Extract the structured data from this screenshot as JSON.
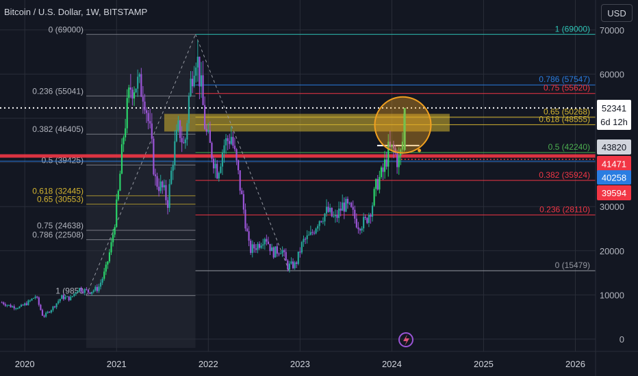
{
  "header": {
    "title": "Bitcoin / U.S. Dollar, 1W, BITSTAMP",
    "currency_button": "USD"
  },
  "colors": {
    "background": "#131722",
    "up": "#26a69a",
    "up_bright": "#2bd46a",
    "down": "#9c55d8",
    "grid": "#2a2e39",
    "axis_text": "#b2b5be",
    "text": "#d1d4dc",
    "fib_upper": "#2a7de1",
    "fib_red": "#f23645",
    "fib_yellow": "#d4b530",
    "fib_teal": "#2ec4b6",
    "fib_green": "#4caf50",
    "fib_gray": "#9598a1"
  },
  "chart_data": {
    "type": "candlestick",
    "symbol": "Bitcoin / U.S. Dollar",
    "interval": "1W",
    "exchange": "BITSTAMP",
    "x_ticks": [
      "2020",
      "2021",
      "2022",
      "2023",
      "2024",
      "2025",
      "2026"
    ],
    "x_range": [
      2019.73,
      2026.22
    ],
    "y_ticks": [
      0,
      10000,
      20000,
      30000,
      40000,
      50000,
      60000,
      70000
    ],
    "y_range": [
      -6500,
      77000
    ],
    "price_path": [
      [
        2019.75,
        8300
      ],
      [
        2019.85,
        7400
      ],
      [
        2019.95,
        7200
      ],
      [
        2020.05,
        8500
      ],
      [
        2020.12,
        9800
      ],
      [
        2020.2,
        5000
      ],
      [
        2020.3,
        7000
      ],
      [
        2020.4,
        9500
      ],
      [
        2020.5,
        9200
      ],
      [
        2020.58,
        11500
      ],
      [
        2020.7,
        10700
      ],
      [
        2020.8,
        11500
      ],
      [
        2020.88,
        15500
      ],
      [
        2020.95,
        22000
      ],
      [
        2021.02,
        33000
      ],
      [
        2021.08,
        47000
      ],
      [
        2021.15,
        57000
      ],
      [
        2021.22,
        58000
      ],
      [
        2021.3,
        56000
      ],
      [
        2021.37,
        46000
      ],
      [
        2021.42,
        36000
      ],
      [
        2021.5,
        34000
      ],
      [
        2021.56,
        31000
      ],
      [
        2021.62,
        42000
      ],
      [
        2021.68,
        48000
      ],
      [
        2021.74,
        43000
      ],
      [
        2021.79,
        55000
      ],
      [
        2021.84,
        63000
      ],
      [
        2021.87,
        65000
      ],
      [
        2021.92,
        57000
      ],
      [
        2021.97,
        47000
      ],
      [
        2022.04,
        42000
      ],
      [
        2022.1,
        38000
      ],
      [
        2022.17,
        44000
      ],
      [
        2022.25,
        46000
      ],
      [
        2022.32,
        38000
      ],
      [
        2022.38,
        30000
      ],
      [
        2022.45,
        20000
      ],
      [
        2022.55,
        21500
      ],
      [
        2022.62,
        23500
      ],
      [
        2022.7,
        19500
      ],
      [
        2022.8,
        20500
      ],
      [
        2022.86,
        16500
      ],
      [
        2022.95,
        16800
      ],
      [
        2023.03,
        22000
      ],
      [
        2023.12,
        23500
      ],
      [
        2023.2,
        27000
      ],
      [
        2023.3,
        29000
      ],
      [
        2023.38,
        27000
      ],
      [
        2023.47,
        30500
      ],
      [
        2023.55,
        29200
      ],
      [
        2023.63,
        26000
      ],
      [
        2023.71,
        26500
      ],
      [
        2023.78,
        30000
      ],
      [
        2023.84,
        35500
      ],
      [
        2023.9,
        37500
      ],
      [
        2023.96,
        42500
      ],
      [
        2024.02,
        42800
      ],
      [
        2024.07,
        40000
      ],
      [
        2024.11,
        43000
      ],
      [
        2024.14,
        52341
      ]
    ],
    "fibonacci_upper": {
      "anchor_label_side": "right",
      "levels": [
        {
          "ratio": "1",
          "price": 69000,
          "label": "1 (69000)",
          "color": "#2ec4b6"
        },
        {
          "ratio": "0.786",
          "price": 57547,
          "label": "0.786 (57547)",
          "color": "#2a7de1"
        },
        {
          "ratio": "0.75",
          "price": 55620,
          "label": "0.75 (55620)",
          "color": "#f23645"
        },
        {
          "ratio": "0.65",
          "price": 50268,
          "label": "0.65 (50268)",
          "color": "#d4b530"
        },
        {
          "ratio": "0.618",
          "price": 48555,
          "label": "0.618 (48555)",
          "color": "#d4b530"
        },
        {
          "ratio": "0.5",
          "price": 42240,
          "label": "0.5 (42240)",
          "color": "#4caf50"
        },
        {
          "ratio": "0.382",
          "price": 35924,
          "label": "0.382 (35924)",
          "color": "#f23645"
        },
        {
          "ratio": "0.236",
          "price": 28110,
          "label": "0.236 (28110)",
          "color": "#f23645"
        },
        {
          "ratio": "0",
          "price": 15479,
          "label": "0 (15479)",
          "color": "#9598a1"
        }
      ]
    },
    "fibonacci_lower": {
      "anchor_label_side": "left",
      "levels": [
        {
          "ratio": "0",
          "price": 69000,
          "label": "0 (69000)",
          "color": "#9598a1"
        },
        {
          "ratio": "0.236",
          "price": 55041,
          "label": "0.236 (55041)",
          "color": "#9598a1"
        },
        {
          "ratio": "0.382",
          "price": 46405,
          "label": "0.382 (46405)",
          "color": "#9598a1"
        },
        {
          "ratio": "0.5",
          "price": 39425,
          "label": "0.5 (39425)",
          "color": "#9598a1"
        },
        {
          "ratio": "0.618",
          "price": 32445,
          "label": "0.618 (32445)",
          "color": "#d4b530"
        },
        {
          "ratio": "0.65",
          "price": 30553,
          "label": "0.65 (30553)",
          "color": "#d4b530"
        },
        {
          "ratio": "0.75",
          "price": 24638,
          "label": "0.75 (24638)",
          "color": "#9598a1"
        },
        {
          "ratio": "0.786",
          "price": 22508,
          "label": "0.786 (22508)",
          "color": "#9598a1"
        },
        {
          "ratio": "1",
          "price": 9850,
          "label": "1 (9850",
          "color": "#9598a1"
        }
      ]
    },
    "resistance_zone": {
      "from": 47000,
      "to": 51000,
      "color": "#d4b530"
    },
    "highlight_circle": {
      "center_x": 2024.12,
      "center_y": 48500
    },
    "horizontal_lines": [
      {
        "price": 52341,
        "style": "dotted",
        "color": "#ffffff"
      },
      {
        "price": 41471,
        "style": "thick",
        "color": "#f23645"
      },
      {
        "price": 40258,
        "style": "solid",
        "color": "#2a7de1"
      },
      {
        "price": 43820,
        "style": "solid",
        "color": "#ffffff"
      }
    ],
    "price_labels": [
      {
        "price": 52341,
        "text": "52341",
        "sub": "6d 12h",
        "bg": "#ffffff",
        "fg": "#131722"
      },
      {
        "price": 43820,
        "text": "43820",
        "bg": "#d1d4dc",
        "fg": "#131722"
      },
      {
        "price": 41471,
        "text": "41471",
        "bg": "#f23645",
        "fg": "#ffffff"
      },
      {
        "price": 40258,
        "text": "40258",
        "bg": "#2a7de1",
        "fg": "#ffffff"
      },
      {
        "price": 39594,
        "text": "39594",
        "bg": "#f23645",
        "fg": "#ffffff"
      }
    ]
  }
}
